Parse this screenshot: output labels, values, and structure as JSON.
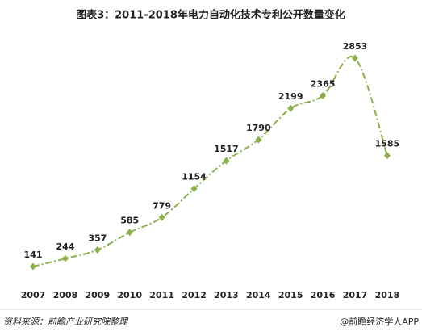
{
  "chart_data": {
    "type": "line",
    "title": "图表3：2011-2018年电力自动化技术专利公开数量变化",
    "categories": [
      "2007",
      "2008",
      "2009",
      "2010",
      "2011",
      "2012",
      "2013",
      "2014",
      "2015",
      "2016",
      "2017",
      "2018"
    ],
    "values": [
      141,
      244,
      357,
      585,
      779,
      1154,
      1517,
      1790,
      2199,
      2365,
      2853,
      1585
    ],
    "color": "#8bb04a",
    "ylim": [
      0,
      3000
    ],
    "source": "资料来源：前瞻产业研究院整理",
    "credit": "@前瞻经济学人APP"
  }
}
